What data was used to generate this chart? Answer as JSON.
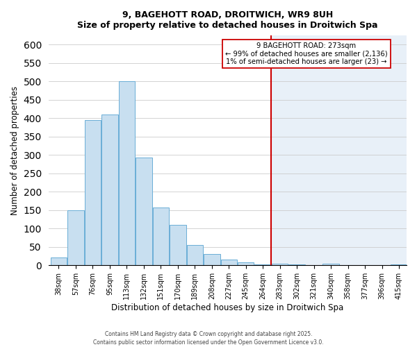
{
  "title_line1": "9, BAGEHOTT ROAD, DROITWICH, WR9 8UH",
  "title_line2": "Size of property relative to detached houses in Droitwich Spa",
  "xlabel": "Distribution of detached houses by size in Droitwich Spa",
  "ylabel": "Number of detached properties",
  "footer_line1": "Contains HM Land Registry data © Crown copyright and database right 2025.",
  "footer_line2": "Contains public sector information licensed under the Open Government Licence v3.0.",
  "bar_labels": [
    "38sqm",
    "57sqm",
    "76sqm",
    "95sqm",
    "113sqm",
    "132sqm",
    "151sqm",
    "170sqm",
    "189sqm",
    "208sqm",
    "227sqm",
    "245sqm",
    "264sqm",
    "283sqm",
    "302sqm",
    "321sqm",
    "340sqm",
    "358sqm",
    "377sqm",
    "396sqm",
    "415sqm"
  ],
  "bar_values": [
    22,
    150,
    395,
    410,
    500,
    293,
    158,
    110,
    55,
    30,
    15,
    8,
    3,
    5,
    2,
    0,
    5,
    0,
    0,
    0,
    3
  ],
  "bar_color_left": "#c8dff0",
  "bar_color_right": "#dce8f5",
  "bar_edge_color": "#6aaed6",
  "vline_color": "#cc0000",
  "annotation_title": "9 BAGEHOTT ROAD: 273sqm",
  "annotation_line2": "← 99% of detached houses are smaller (2,136)",
  "annotation_line3": "1% of semi-detached houses are larger (23) →",
  "background_color": "#ffffff",
  "plot_bg_right": "#e8f0f8",
  "ylim": [
    0,
    625
  ],
  "yticks": [
    0,
    50,
    100,
    150,
    200,
    250,
    300,
    350,
    400,
    450,
    500,
    550,
    600
  ],
  "grid_color": "#cccccc",
  "bin_width": 19,
  "vline_index": 13,
  "n_bars": 21
}
